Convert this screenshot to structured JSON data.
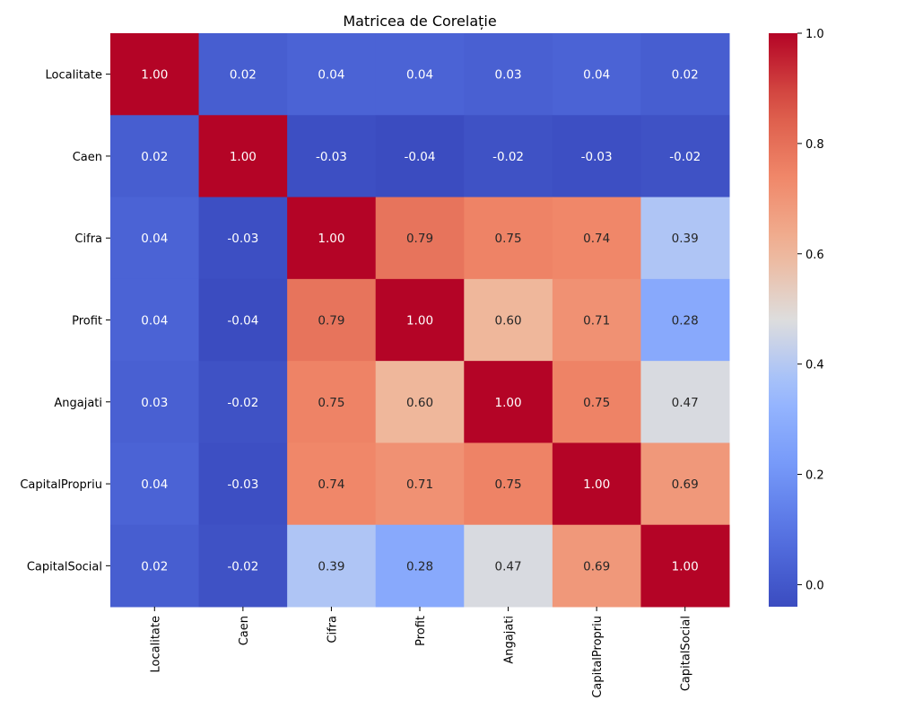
{
  "chart_data": {
    "type": "heatmap",
    "title": "Matricea de Corelație",
    "xlabel": "",
    "ylabel": "",
    "labels": [
      "Localitate",
      "Caen",
      "Cifra",
      "Profit",
      "Angajati",
      "CapitalPropriu",
      "CapitalSocial"
    ],
    "matrix": [
      [
        1.0,
        0.02,
        0.04,
        0.04,
        0.03,
        0.04,
        0.02
      ],
      [
        0.02,
        1.0,
        -0.03,
        -0.04,
        -0.02,
        -0.03,
        -0.02
      ],
      [
        0.04,
        -0.03,
        1.0,
        0.79,
        0.75,
        0.74,
        0.39
      ],
      [
        0.04,
        -0.04,
        0.79,
        1.0,
        0.6,
        0.71,
        0.28
      ],
      [
        0.03,
        -0.02,
        0.75,
        0.6,
        1.0,
        0.75,
        0.47
      ],
      [
        0.04,
        -0.03,
        0.74,
        0.71,
        0.75,
        1.0,
        0.69
      ],
      [
        0.02,
        -0.02,
        0.39,
        0.28,
        0.47,
        0.69,
        1.0
      ]
    ],
    "annotation_format": "2 decimals",
    "colormap": "coolwarm",
    "color_range": [
      -0.04,
      1.0
    ],
    "colorbar_ticks": [
      "0.0",
      "0.2",
      "0.4",
      "0.6",
      "0.8",
      "1.0"
    ],
    "colorbar_placement": "right"
  }
}
